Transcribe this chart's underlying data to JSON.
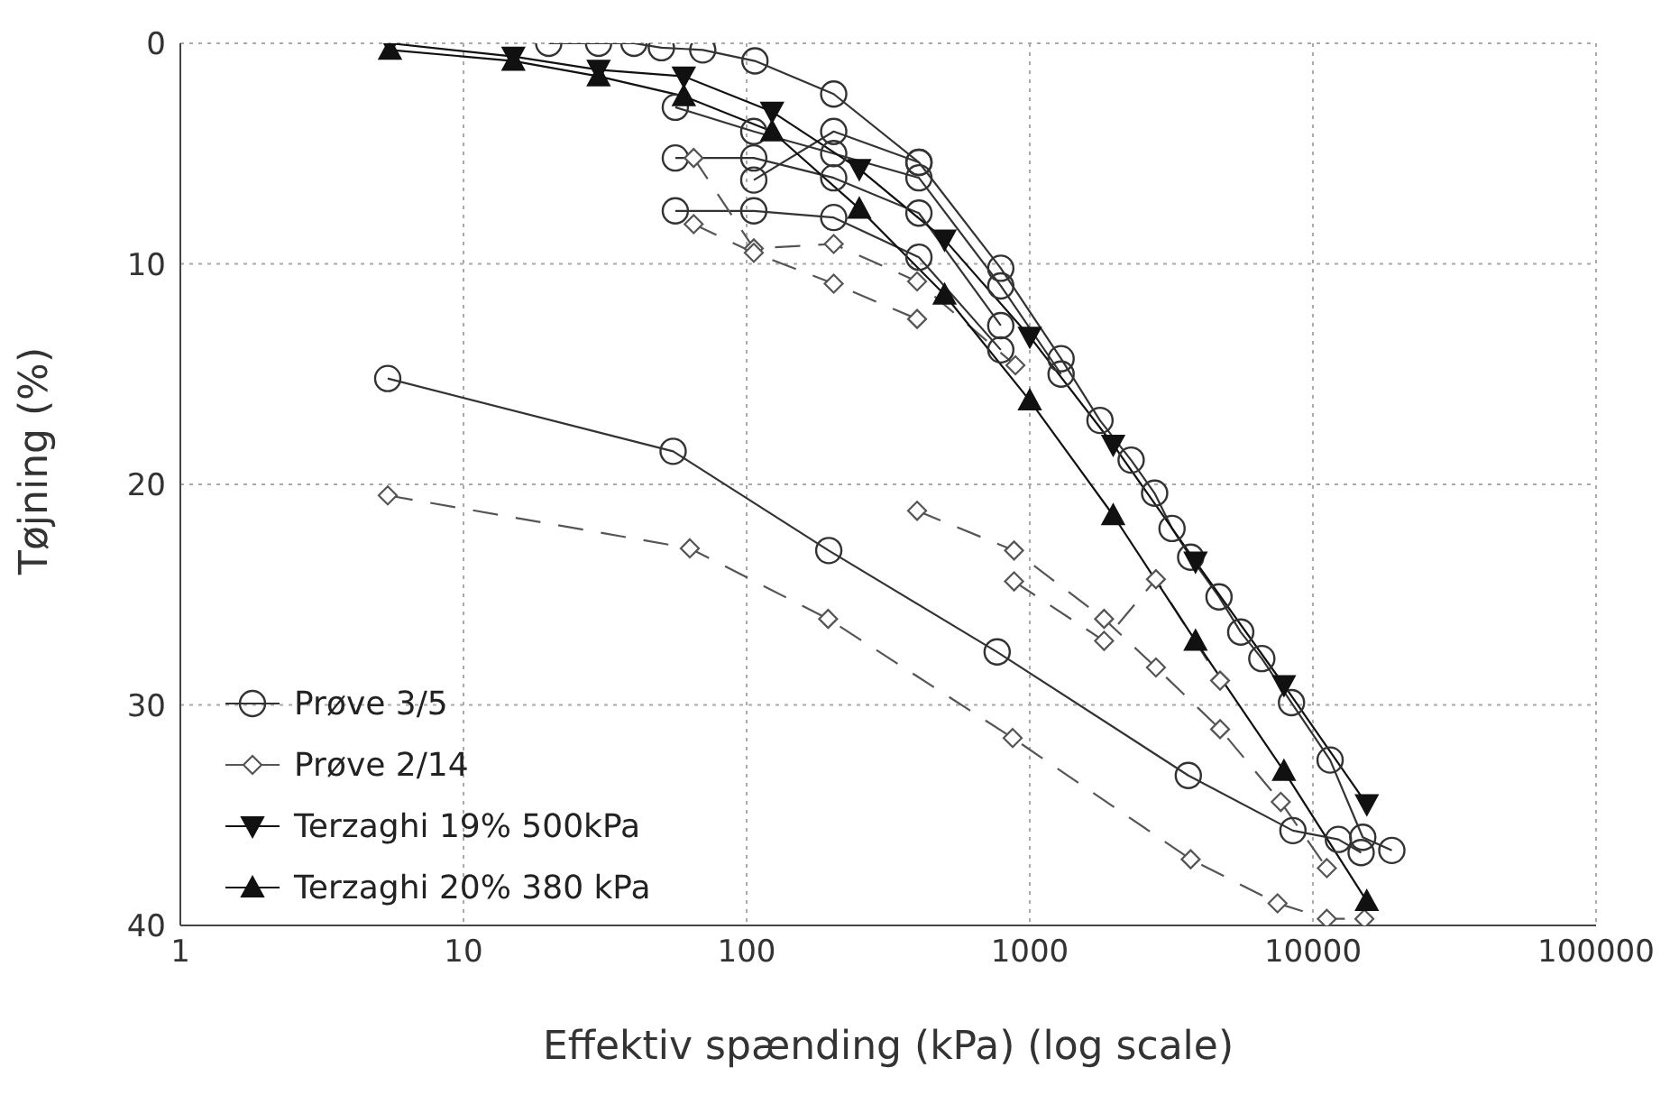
{
  "chart_data": {
    "type": "line",
    "xlabel": "Effektiv spænding (kPa) (log scale)",
    "ylabel": "Tøjning (%)",
    "log": "x",
    "xlim": [
      1,
      100000
    ],
    "xticks": [
      1,
      10,
      100,
      1000,
      10000,
      100000
    ],
    "ylim": [
      40,
      0
    ],
    "yticks": [
      0,
      10,
      20,
      30,
      40
    ],
    "grid": true,
    "legend": "bottom left",
    "series": [
      {
        "name": "Prøve 3/5",
        "color": "#333333",
        "marker": "circle",
        "line_style": "solid",
        "x": [
          20,
          30,
          40,
          50,
          70,
          107,
          203,
          406,
          790,
          1290,
          1770,
          2280,
          2760,
          3180,
          3700,
          4660,
          5560,
          6600,
          8400,
          11500,
          15000,
          19000
        ],
        "values": [
          0,
          0,
          0,
          0.2,
          0.3,
          0.8,
          2.3,
          5.4,
          10.2,
          14.3,
          17.1,
          18.9,
          20.4,
          22.0,
          23.3,
          25.1,
          26.7,
          27.9,
          29.9,
          32.5,
          36.0,
          36.6
        ]
      },
      {
        "color": "#333333",
        "marker": "circle",
        "line_style": "solid",
        "x": [
          56,
          106,
          203,
          406,
          790,
          1290
        ],
        "values": [
          2.9,
          4.0,
          5.0,
          6.1,
          11.0,
          15.0
        ]
      },
      {
        "color": "#333333",
        "marker": "circle",
        "line_style": "solid",
        "x": [
          56,
          106,
          203,
          406,
          790
        ],
        "values": [
          5.2,
          5.2,
          6.1,
          7.7,
          12.8
        ]
      },
      {
        "color": "#333333",
        "marker": "circle",
        "line_style": "solid",
        "x": [
          56,
          106,
          203,
          406,
          790
        ],
        "values": [
          7.6,
          7.6,
          7.9,
          9.7,
          13.9
        ]
      },
      {
        "color": "#333333",
        "marker": "circle",
        "line_style": "solid",
        "x": [
          106,
          203,
          406
        ],
        "values": [
          6.2,
          4.0,
          5.4
        ]
      },
      {
        "color": "#333333",
        "marker": "circle",
        "line_style": "solid",
        "x": [
          5.4,
          55,
          195,
          767,
          3630,
          8500,
          12300,
          14800
        ],
        "values": [
          15.2,
          18.5,
          23.0,
          27.6,
          33.2,
          35.7,
          36.1,
          36.7
        ]
      },
      {
        "name": "Prøve 2/14",
        "color": "#555555",
        "marker": "diamond",
        "line_style": "dashed",
        "x": [
          5.4,
          63,
          194,
          870,
          3700,
          7500,
          11200,
          15200
        ],
        "values": [
          20.5,
          22.9,
          26.1,
          31.5,
          37.0,
          39.0,
          39.7,
          39.7
        ]
      },
      {
        "color": "#555555",
        "marker": "diamond",
        "line_style": "dashed",
        "x": [
          65,
          106,
          203,
          400,
          890
        ],
        "values": [
          5.2,
          9.3,
          9.1,
          10.8,
          14.6
        ]
      },
      {
        "color": "#555555",
        "marker": "diamond",
        "line_style": "dashed",
        "x": [
          65,
          106,
          203,
          400
        ],
        "values": [
          8.2,
          9.5,
          10.9,
          12.5
        ]
      },
      {
        "color": "#555555",
        "marker": "diamond",
        "line_style": "dashed",
        "x": [
          400,
          880,
          1830,
          2790,
          4700,
          7700,
          11200
        ],
        "values": [
          21.2,
          23.0,
          26.1,
          28.3,
          31.1,
          34.4,
          37.4
        ]
      },
      {
        "color": "#555555",
        "marker": "diamond",
        "line_style": "dashed",
        "x": [
          880,
          1830,
          2790,
          4700
        ],
        "values": [
          24.4,
          27.1,
          24.3,
          28.9
        ]
      },
      {
        "name": "Terzaghi 19% 500kPa",
        "color": "#111111",
        "marker": "triangle-down",
        "line_style": "solid",
        "x": [
          5.5,
          15,
          30,
          60,
          123,
          250,
          500,
          1000,
          1970,
          3850,
          7900,
          15500
        ],
        "values": [
          0,
          0.6,
          1.2,
          1.5,
          3.1,
          5.7,
          8.9,
          13.3,
          18.2,
          23.5,
          29.1,
          34.5
        ]
      },
      {
        "name": "Terzaghi 20% 380 kPa",
        "color": "#111111",
        "marker": "triangle",
        "line_style": "solid",
        "x": [
          5.5,
          15,
          30,
          60,
          123,
          250,
          500,
          1000,
          1970,
          3850,
          7900,
          15500
        ],
        "values": [
          0.3,
          0.8,
          1.5,
          2.4,
          4.0,
          7.5,
          11.4,
          16.2,
          21.4,
          27.1,
          33.0,
          38.9
        ]
      }
    ]
  }
}
